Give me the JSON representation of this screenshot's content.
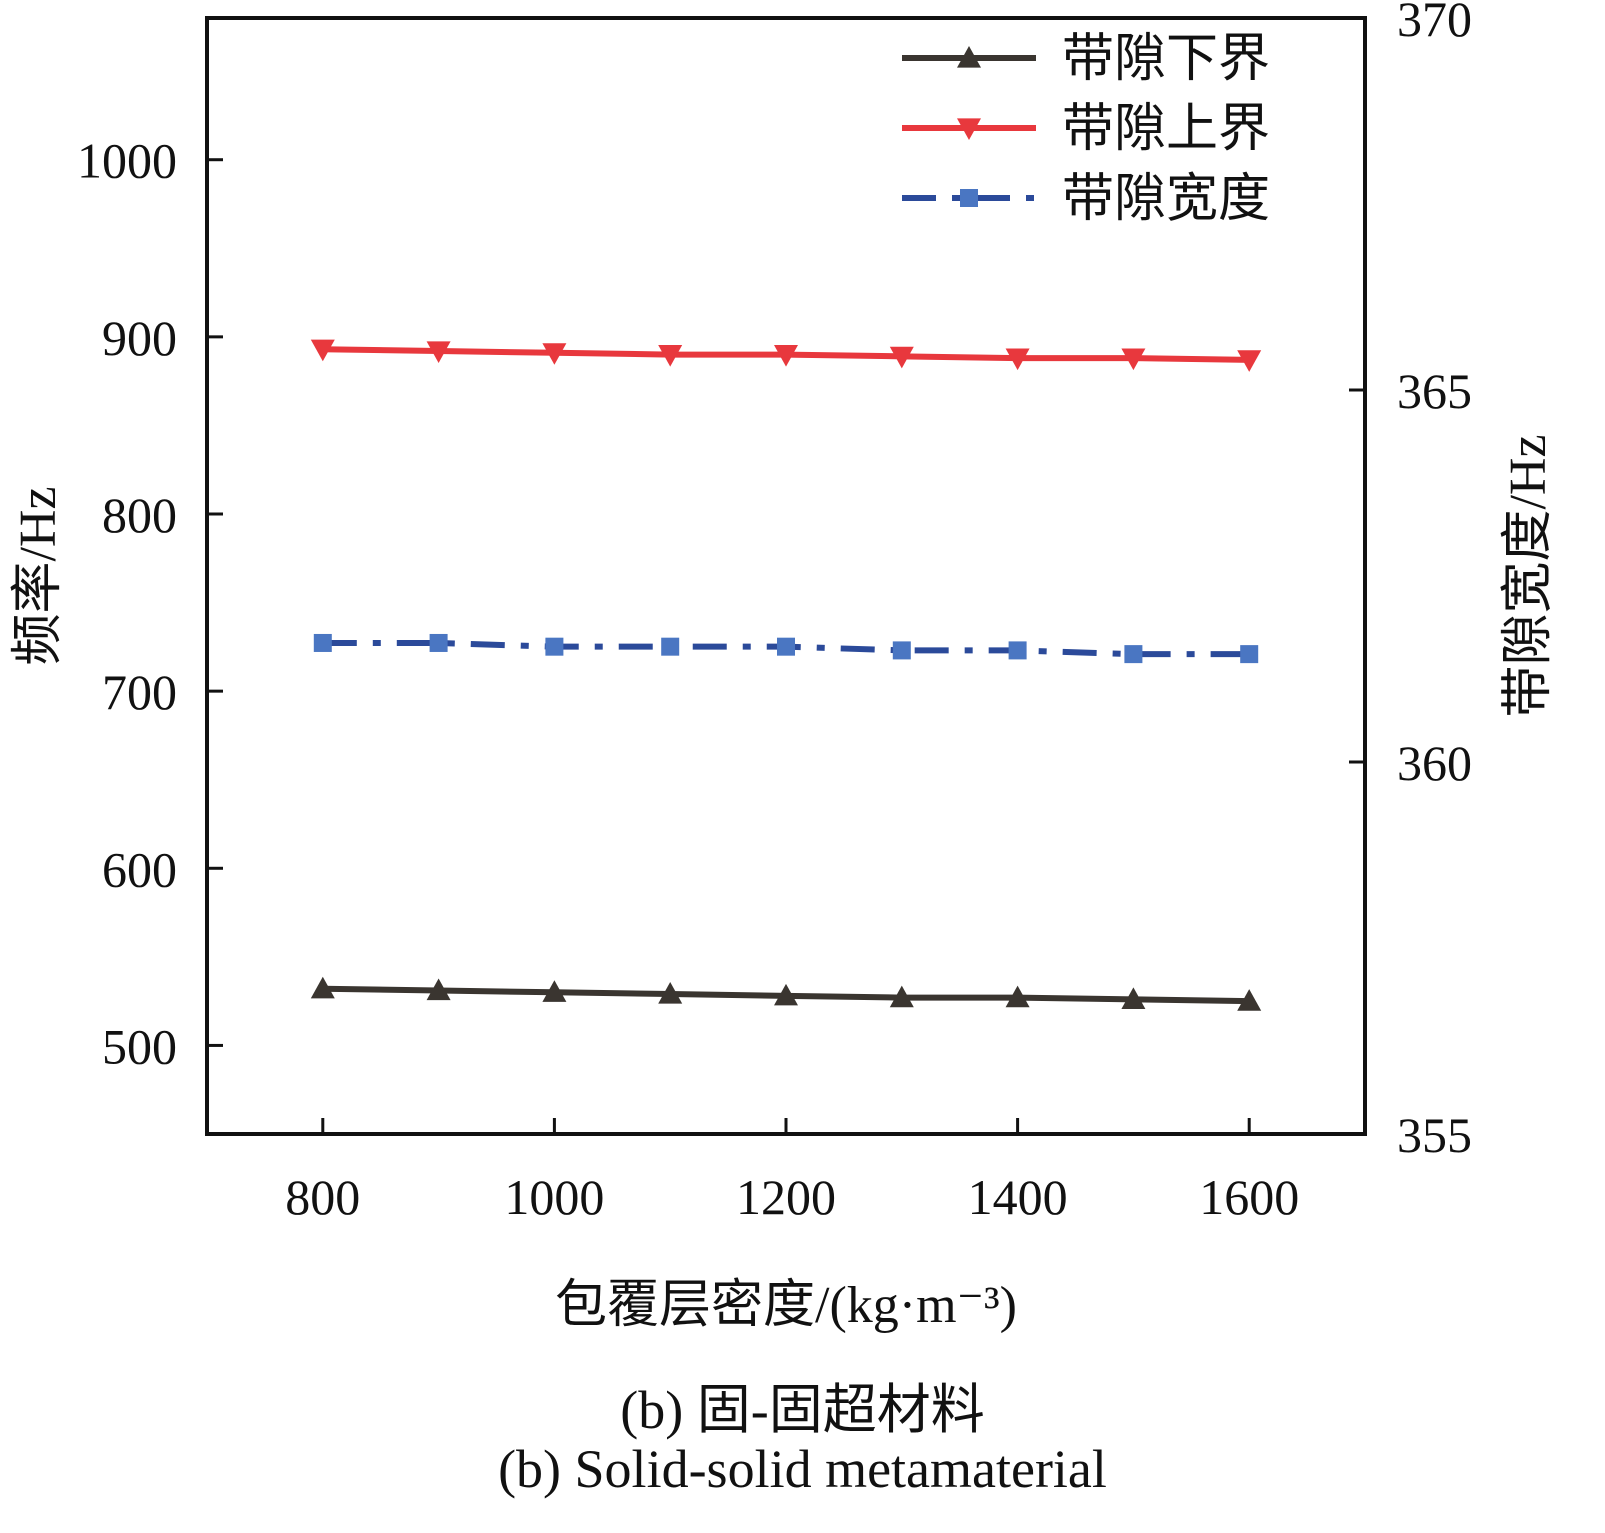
{
  "chart_data": {
    "type": "line",
    "x": [
      800,
      900,
      1000,
      1100,
      1200,
      1300,
      1400,
      1500,
      1600
    ],
    "xlim": [
      700,
      1700
    ],
    "x_ticks": [
      800,
      1000,
      1200,
      1400,
      1600
    ],
    "xlabel": "包覆层密度/(kg·m⁻³)",
    "ylabel_left": "频率/Hz",
    "ylim_left": [
      450,
      1080
    ],
    "y_ticks_left": [
      500,
      600,
      700,
      800,
      900,
      1000
    ],
    "ylabel_right": "带隙宽度/Hz",
    "ylim_right": [
      355,
      370
    ],
    "y_ticks_right": [
      355,
      360,
      365,
      370
    ],
    "grid": false,
    "legend_position": "top-right",
    "series": [
      {
        "name": "带隙下界",
        "axis": "left",
        "color": "#3a3530",
        "marker": "triangle-up",
        "dash": "solid",
        "values": [
          532,
          531,
          530,
          529,
          528,
          527,
          527,
          526,
          525
        ]
      },
      {
        "name": "带隙上界",
        "axis": "left",
        "color": "#e8383d",
        "marker": "triangle-down",
        "dash": "solid",
        "values": [
          893,
          892,
          891,
          890,
          890,
          889,
          888,
          888,
          887
        ]
      },
      {
        "name": "带隙宽度",
        "axis": "right",
        "color": "#2b4a9a",
        "marker_color": "#4a76c2",
        "marker": "square",
        "dash": "dashdot",
        "values": [
          361.6,
          361.6,
          361.55,
          361.55,
          361.55,
          361.5,
          361.5,
          361.45,
          361.45
        ]
      }
    ]
  },
  "captions": {
    "cn": "(b) 固-固超材料",
    "en": "(b) Solid-solid metamaterial"
  }
}
